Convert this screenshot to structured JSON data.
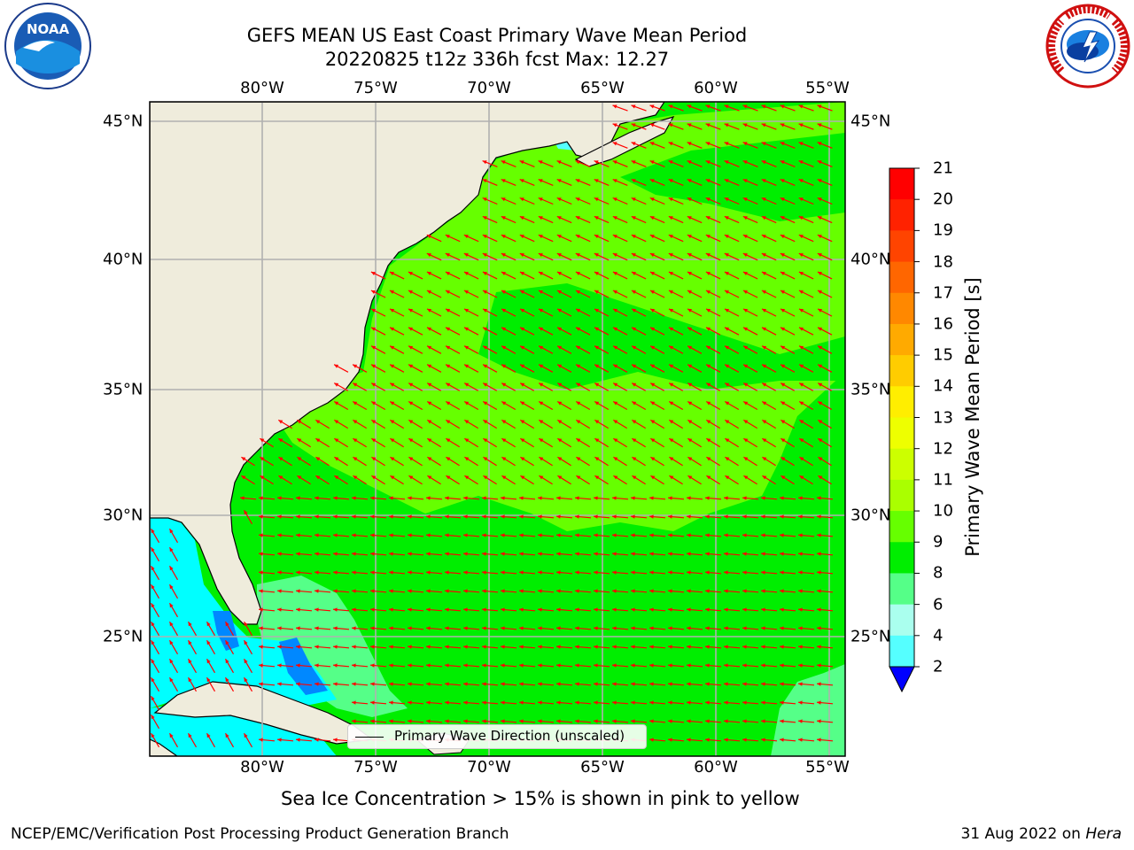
{
  "header": {
    "title_line1": "GEFS MEAN US East Coast Primary Wave Mean Period",
    "title_line2": "20220825 t12z 336h fcst   Max: 12.27"
  },
  "logos": {
    "left": {
      "name": "noaa-logo",
      "text": "NOAA"
    },
    "right": {
      "name": "nws-logo",
      "text": "NATIONAL WEATHER SERVICE"
    }
  },
  "map": {
    "lon_labels": [
      "80°W",
      "75°W",
      "70°W",
      "65°W",
      "60°W",
      "55°W"
    ],
    "lat_labels_left": [
      "45°N",
      "40°N",
      "35°N",
      "30°N",
      "25°N"
    ],
    "lat_labels_right": [
      "45°N",
      "40°N",
      "35°N",
      "30°N",
      "25°N"
    ],
    "land_color": "#efecdc",
    "grid_color": "#b0b0b0",
    "arrow_color": "#ff0000"
  },
  "colorbar": {
    "label": "Primary Wave Mean Period [s]",
    "ticks": [
      "21",
      "20",
      "19",
      "18",
      "17",
      "16",
      "15",
      "14",
      "13",
      "12",
      "11",
      "10",
      "9",
      "8",
      "6",
      "4",
      "2"
    ],
    "colors": [
      "#ff0000",
      "#ff2200",
      "#ff4400",
      "#ff6600",
      "#ff8800",
      "#ffaa00",
      "#ffcc00",
      "#ffee00",
      "#eeff00",
      "#ccff00",
      "#aaff00",
      "#66ff00",
      "#00ee00",
      "#55ff88",
      "#aaffee",
      "#55ffff",
      "#00ffff",
      "#0088ff"
    ],
    "under_color": "#0000ff"
  },
  "legend": {
    "label": "Primary Wave Direction (unscaled)"
  },
  "notes": {
    "sea_ice": "Sea Ice Concentration > 15% is shown in pink to yellow",
    "footer_left": "NCEP/EMC/Verification Post Processing Product Generation Branch",
    "footer_right_date": "31 Aug 2022 on ",
    "footer_right_host": "Hera"
  }
}
